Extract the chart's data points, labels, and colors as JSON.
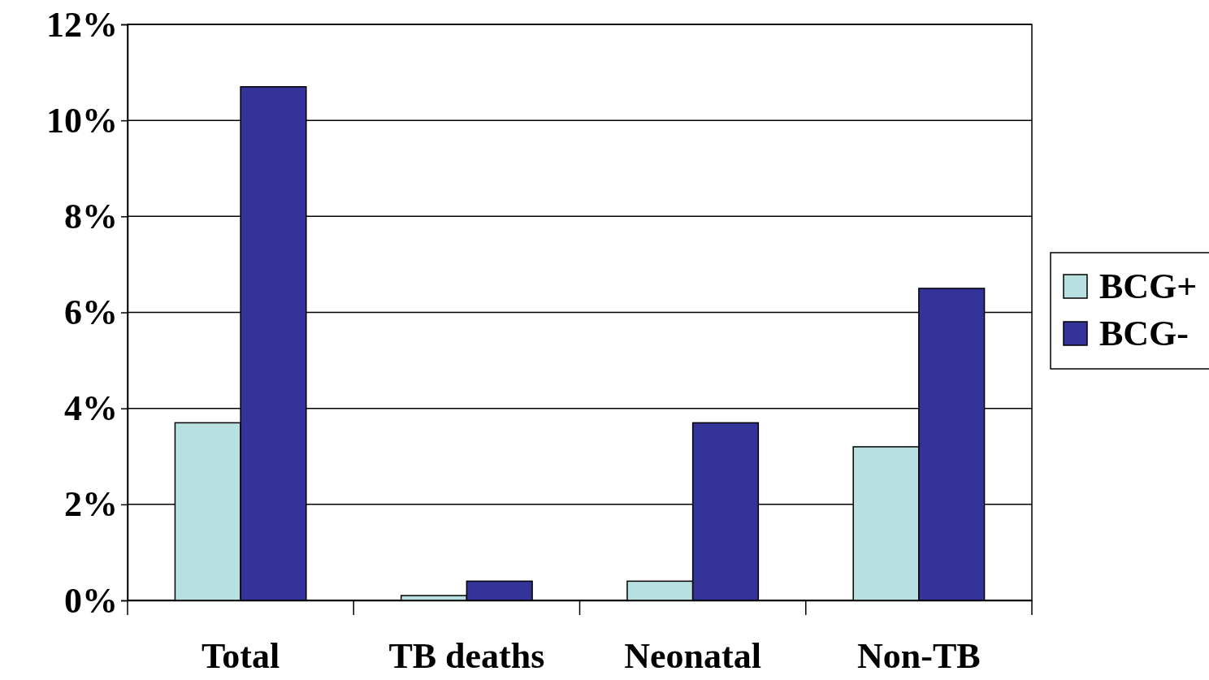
{
  "chart_data": {
    "type": "bar",
    "categories": [
      "Total",
      "TB deaths",
      "Neonatal",
      "Non-TB"
    ],
    "series": [
      {
        "name": "BCG+",
        "color": "#b8e0e0",
        "values": [
          3.7,
          0.1,
          0.4,
          3.2
        ]
      },
      {
        "name": "BCG-",
        "color": "#333399",
        "values": [
          10.7,
          0.4,
          3.7,
          6.5
        ]
      }
    ],
    "ylim": [
      0,
      12
    ],
    "yticks": [
      {
        "value": 0,
        "label": "0%"
      },
      {
        "value": 2,
        "label": "2%"
      },
      {
        "value": 4,
        "label": "4%"
      },
      {
        "value": 6,
        "label": "6%"
      },
      {
        "value": 8,
        "label": "8%"
      },
      {
        "value": 10,
        "label": "10%"
      },
      {
        "value": 12,
        "label": "12%"
      }
    ],
    "grid": "y",
    "legend": "right"
  }
}
